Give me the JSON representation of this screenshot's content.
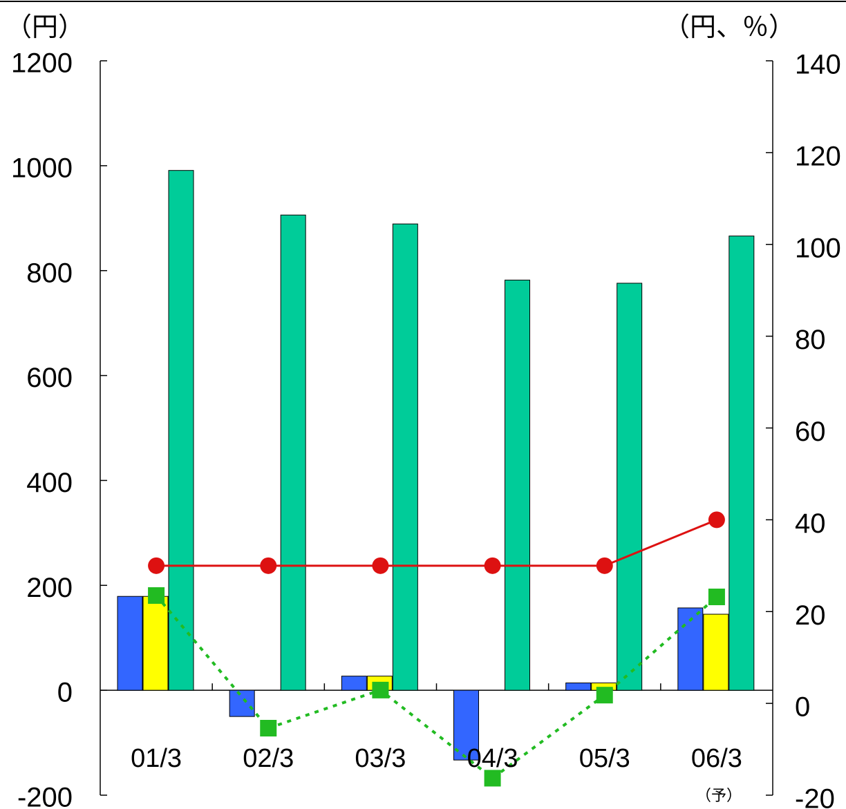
{
  "chart_data": {
    "type": "bar",
    "y_unit_label": "（円）",
    "y2_unit_label": "（円、％）",
    "annotation": "（予）",
    "categories": [
      "01/3",
      "02/3",
      "03/3",
      "04/3",
      "05/3",
      "06/3"
    ],
    "ylim": [
      -200,
      1200
    ],
    "yticks": [
      -200,
      0,
      200,
      400,
      600,
      800,
      1000,
      1200
    ],
    "y2lim": [
      -20,
      140
    ],
    "y2ticks": [
      -20,
      0,
      20,
      40,
      60,
      80,
      100,
      120,
      140
    ],
    "series": [
      {
        "type": "bar",
        "color": "#3366ff",
        "values": [
          179,
          -50,
          27,
          -133,
          14,
          157
        ]
      },
      {
        "type": "bar",
        "color": "#ffff00",
        "values": [
          179,
          0,
          27,
          0,
          14,
          145
        ]
      },
      {
        "type": "bar",
        "color": "#00cc99",
        "values": [
          991,
          906,
          889,
          782,
          776,
          866
        ]
      },
      {
        "type": "line",
        "axis": "y2",
        "color": "#dd1111",
        "line_style": "solid",
        "marker": "circle",
        "values": [
          30,
          30,
          30,
          30,
          30,
          40
        ]
      },
      {
        "type": "line",
        "axis": "y2",
        "color": "#22bb22",
        "line_style": "dotted",
        "marker": "square",
        "values": [
          23.5,
          -5.4,
          2.9,
          -16.3,
          1.8,
          23.2
        ]
      }
    ]
  }
}
